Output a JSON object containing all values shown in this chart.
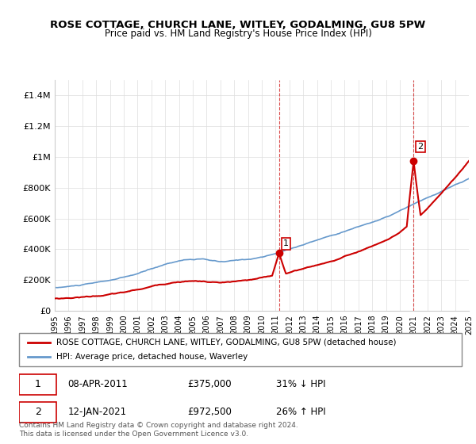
{
  "title": "ROSE COTTAGE, CHURCH LANE, WITLEY, GODALMING, GU8 5PW",
  "subtitle": "Price paid vs. HM Land Registry's House Price Index (HPI)",
  "legend_label_red": "ROSE COTTAGE, CHURCH LANE, WITLEY, GODALMING, GU8 5PW (detached house)",
  "legend_label_blue": "HPI: Average price, detached house, Waverley",
  "transaction1_label": "1",
  "transaction1_date": "08-APR-2011",
  "transaction1_price": "£375,000",
  "transaction1_hpi": "31% ↓ HPI",
  "transaction2_label": "2",
  "transaction2_date": "12-JAN-2021",
  "transaction2_price": "£972,500",
  "transaction2_hpi": "26% ↑ HPI",
  "footer": "Contains HM Land Registry data © Crown copyright and database right 2024.\nThis data is licensed under the Open Government Licence v3.0.",
  "red_color": "#cc0000",
  "blue_color": "#6699cc",
  "vline_color": "#cc0000",
  "grid_color": "#dddddd",
  "ylim": [
    0,
    1500000
  ],
  "yticks": [
    0,
    200000,
    400000,
    600000,
    800000,
    1000000,
    1200000,
    1400000
  ],
  "ytick_labels": [
    "£0",
    "£200K",
    "£400K",
    "£600K",
    "£800K",
    "£1M",
    "£1.2M",
    "£1.4M"
  ],
  "xstart": 1995,
  "xend": 2025
}
